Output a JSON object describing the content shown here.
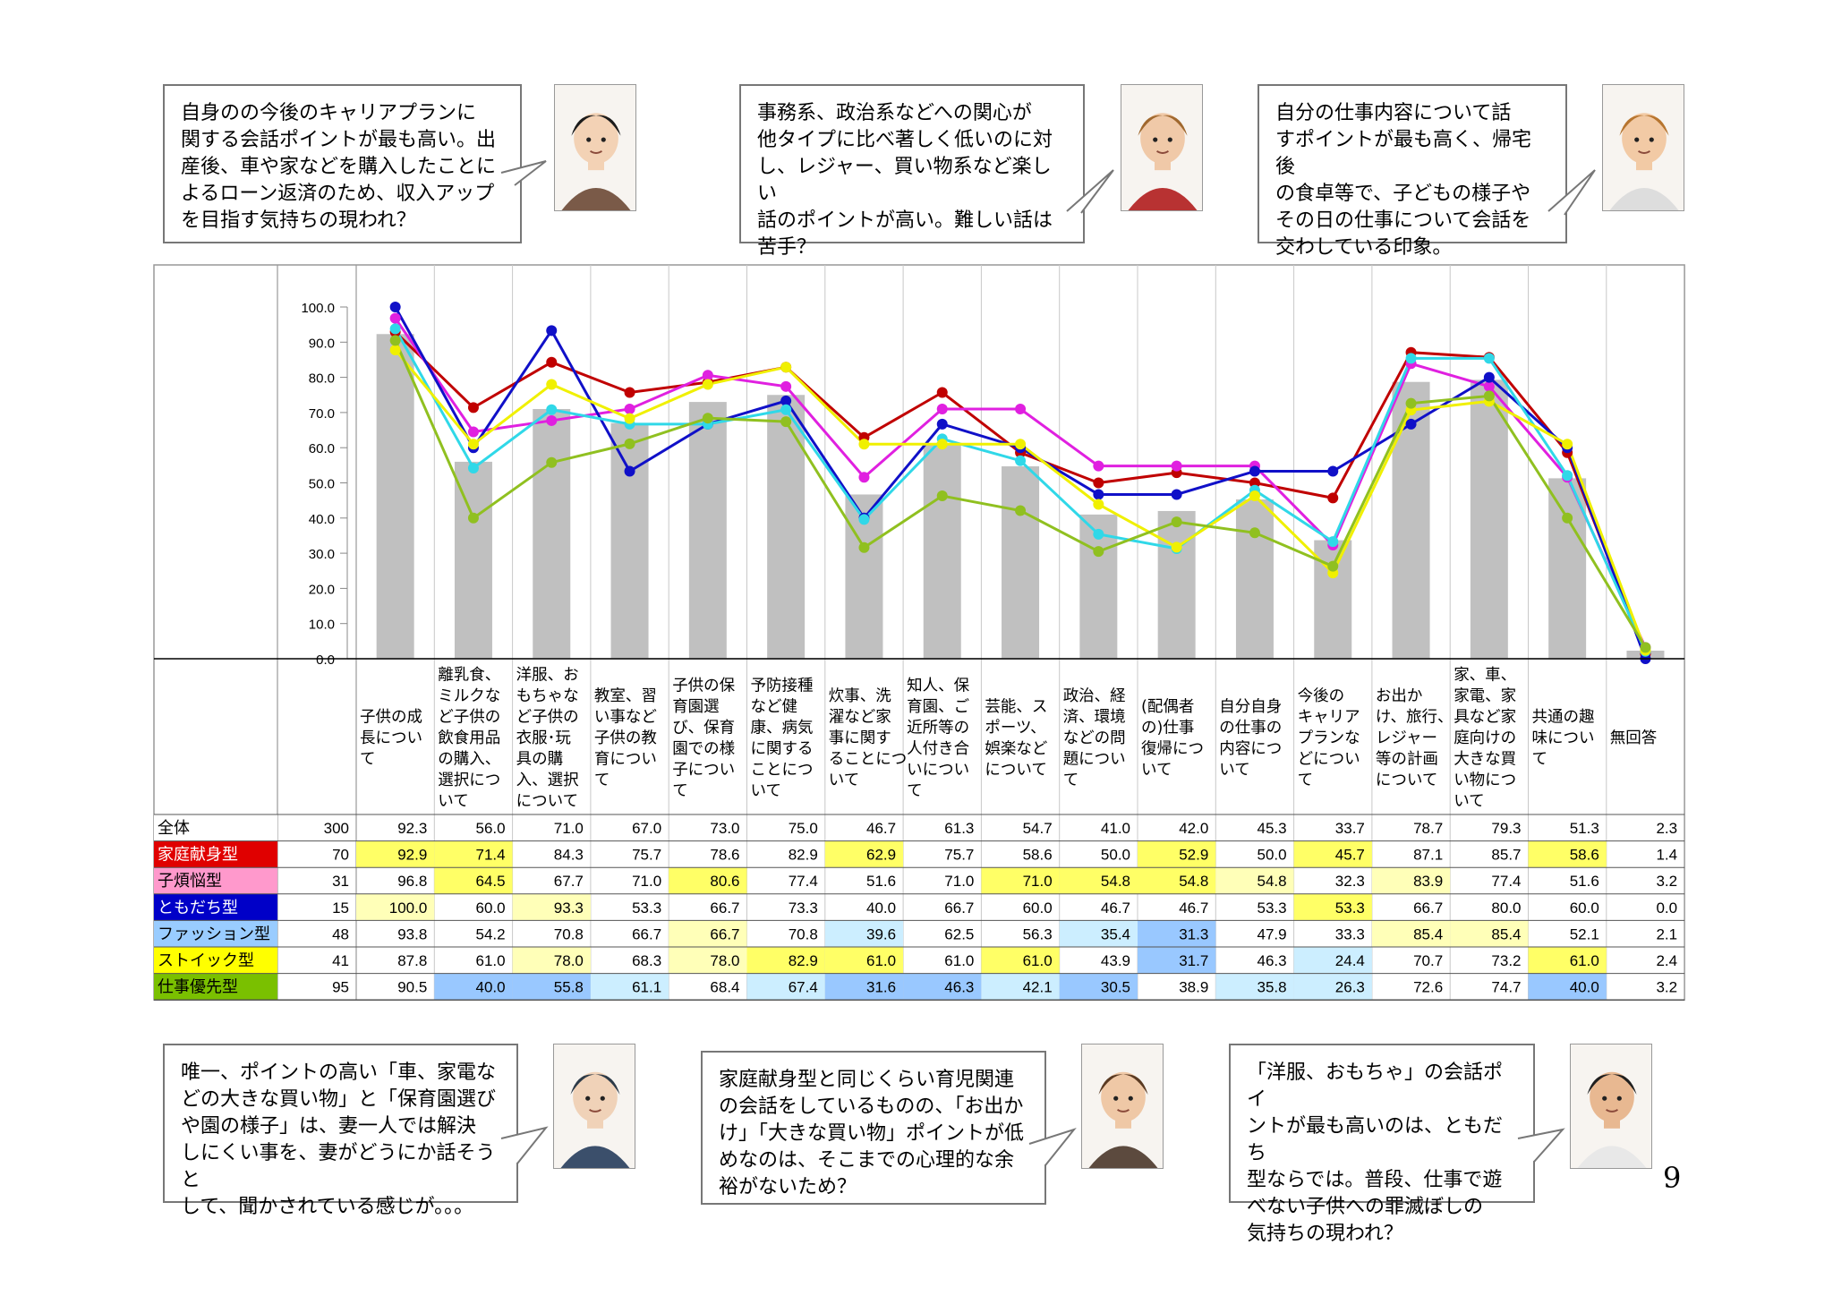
{
  "page_number": "9",
  "comments_top": [
    {
      "text": "自身のの今後のキャリアプランに\n関する会話ポイントが最も高い。出\n産後、車や家などを購入したことに\nよるローン返済のため、収入アップ\nを目指す気持ちの現われ？",
      "avatar": "young-man-dark-hair-avatar"
    },
    {
      "text": "事務系、政治系などへの関心が\n他タイプに比べ著しく低いのに対\nし、レジャー、買い物系など楽しい\n話のポイントが高い。難しい話は\n苦手？",
      "avatar": "man-brown-hair-sunglasses-avatar"
    },
    {
      "text": "自分の仕事内容について話\nすポイントが最も高く、帰宅後\nの食卓等で、子どもの様子や\nその日の仕事について会話を\n交わしている印象。",
      "avatar": "man-camera-avatar"
    }
  ],
  "comments_bottom": [
    {
      "text": "唯一、ポイントの高い「車、家電な\nどの大きな買い物」と「保育園選び\nや園の様子」は、妻一人では解決\nしにくい事を、妻がどうにか話そうと\nして、聞かされている感じが。。。",
      "avatar": "man-glasses-suit-avatar"
    },
    {
      "text": "家庭献身型と同じくらい育児関連\nの会話をしているものの、「お出か\nけ」「大きな買い物」ポイントが低\nめなのは、そこまでの心理的な余\n裕がないため？",
      "avatar": "man-brown-hair-suit-avatar"
    },
    {
      "text": "「洋服、おもちゃ」の会話ポイ\nントが最も高いのは、ともだち\n型ならでは。普段、仕事で遊\nべない子供への罪滅ぼしの\n気持ちの現われ？",
      "avatar": "smiling-man-avatar"
    }
  ],
  "chart_data": {
    "type": "bar",
    "y_ticks": [
      "100.0",
      "90.0",
      "80.0",
      "70.0",
      "60.0",
      "50.0",
      "40.0",
      "30.0",
      "20.0",
      "10.0",
      "0.0"
    ],
    "ylim": [
      0,
      100
    ],
    "grid": "vertical",
    "categories": [
      "子供の成\n長につい\nて",
      "離乳食、\nミルクな\nど子供の\n飲食用品\nの購入、\n選択につ\nいて",
      "洋服、お\nもちゃな\nど子供の\n衣服･玩\n具の購\n入、選択\nについて",
      "教室、習\nい事など\n子供の教\n育につい\nて",
      "子供の保\n育園選\nび、保育\n園での様\n子につい\nて",
      "予防接種\nなど健\n康、病気\nに関する\nことにつ\nいて",
      "炊事、洗\n濯など家\n事に関す\nることにつ\nいて",
      "知人、保\n育園、ご\n近所等の\n人付き合\nいについ\nて",
      "芸能、ス\nポーツ、\n娯楽など\nについて",
      "政治、経\n済、環境\nなどの問\n題につい\nて",
      "(配偶者\nの)仕事\n復帰につ\nいて",
      "自分自身\nの仕事の\n内容につ\nいて",
      "今後の\nキャリア\nプランな\nどについ\nて",
      "お出か\nけ、旅行、\nレジャー\n等の計画\nについて",
      "家、車、\n家電、家\n具など家\n庭向けの\n大きな買\nい物につ\nいて",
      "共通の趣\n味につい\nて",
      "無回答"
    ],
    "rows": [
      {
        "name": "全体",
        "n": "300",
        "values": [
          92.3,
          56.0,
          71.0,
          67.0,
          73.0,
          75.0,
          46.7,
          61.3,
          54.7,
          41.0,
          42.0,
          45.3,
          33.7,
          78.7,
          79.3,
          51.3,
          2.3
        ],
        "label_bg": "#ffffff",
        "label_color": "#000000"
      },
      {
        "name": "家庭献身型",
        "n": "70",
        "values": [
          92.9,
          71.4,
          84.3,
          75.7,
          78.6,
          82.9,
          62.9,
          75.7,
          58.6,
          50.0,
          52.9,
          50.0,
          45.7,
          87.1,
          85.7,
          58.6,
          1.4
        ],
        "label_bg": "#e00000",
        "label_color": "#ffffff",
        "line_color": "#c00000"
      },
      {
        "name": "子煩悩型",
        "n": "31",
        "values": [
          96.8,
          64.5,
          67.7,
          71.0,
          80.6,
          77.4,
          51.6,
          71.0,
          71.0,
          54.8,
          54.8,
          54.8,
          32.3,
          83.9,
          77.4,
          51.6,
          3.2
        ],
        "label_bg": "#ff99cc",
        "label_color": "#000000",
        "line_color": "#e020e0"
      },
      {
        "name": "ともだち型",
        "n": "15",
        "values": [
          100.0,
          60.0,
          93.3,
          53.3,
          66.7,
          73.3,
          40.0,
          66.7,
          60.0,
          46.7,
          46.7,
          53.3,
          53.3,
          66.7,
          80.0,
          60.0,
          0.0
        ],
        "label_bg": "#0000c8",
        "label_color": "#ffffff",
        "line_color": "#1010c8"
      },
      {
        "name": "ファッション型",
        "n": "48",
        "values": [
          93.8,
          54.2,
          70.8,
          66.7,
          66.7,
          70.8,
          39.6,
          62.5,
          56.3,
          35.4,
          31.3,
          47.9,
          33.3,
          85.4,
          85.4,
          52.1,
          2.1
        ],
        "label_bg": "#99ccff",
        "label_color": "#000000",
        "line_color": "#30d8e8"
      },
      {
        "name": "ストイック型",
        "n": "41",
        "values": [
          87.8,
          61.0,
          78.0,
          68.3,
          78.0,
          82.9,
          61.0,
          61.0,
          61.0,
          43.9,
          31.7,
          46.3,
          24.4,
          70.7,
          73.2,
          61.0,
          2.4
        ],
        "label_bg": "#ffff00",
        "label_color": "#000000",
        "line_color": "#f0f000"
      },
      {
        "name": "仕事優先型",
        "n": "95",
        "values": [
          90.5,
          40.0,
          55.8,
          61.1,
          68.4,
          67.4,
          31.6,
          46.3,
          42.1,
          30.5,
          38.9,
          35.8,
          26.3,
          72.6,
          74.7,
          40.0,
          3.2
        ],
        "label_bg": "#7ac000",
        "label_color": "#000000",
        "line_color": "#90c020"
      }
    ],
    "cell_colors": {
      "yellow": "#ffff66",
      "light_yellow": "#ffffb8",
      "blue": "#99c8ff",
      "light_blue": "#cceeff"
    },
    "highlights": [
      [],
      [
        "y",
        "y",
        "n",
        "n",
        "n",
        "n",
        "y",
        "n",
        "n",
        "n",
        "y",
        "n",
        "y",
        "n",
        "n",
        "y",
        "n"
      ],
      [
        "n",
        "y",
        "n",
        "n",
        "y",
        "n",
        "n",
        "n",
        "y",
        "y",
        "y",
        "ly",
        "n",
        "ly",
        "n",
        "n",
        "n"
      ],
      [
        "ly",
        "n",
        "ly",
        "n",
        "n",
        "n",
        "n",
        "n",
        "n",
        "n",
        "n",
        "n",
        "y",
        "n",
        "n",
        "n",
        "n"
      ],
      [
        "n",
        "n",
        "n",
        "n",
        "ly",
        "n",
        "lb",
        "n",
        "n",
        "lb",
        "b",
        "n",
        "n",
        "ly",
        "ly",
        "n",
        "n"
      ],
      [
        "n",
        "n",
        "ly",
        "n",
        "ly",
        "y",
        "y",
        "n",
        "y",
        "n",
        "b",
        "n",
        "lb",
        "n",
        "n",
        "y",
        "n"
      ],
      [
        "n",
        "b",
        "b",
        "lb",
        "n",
        "lb",
        "b",
        "b",
        "lb",
        "b",
        "n",
        "lb",
        "lb",
        "n",
        "n",
        "b",
        "n"
      ]
    ]
  }
}
